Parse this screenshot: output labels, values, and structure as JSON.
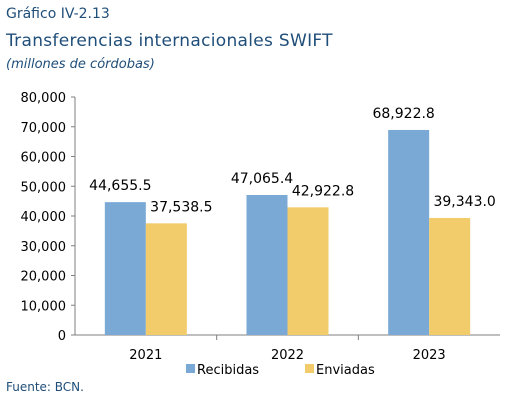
{
  "header": {
    "kicker": "Gráfico IV-2.13",
    "title": "Transferencias internacionales SWIFT",
    "subtitle": "(millones de córdobas)"
  },
  "footer": {
    "source": "Fuente: BCN."
  },
  "colors": {
    "recibidas": "#7aa9d6",
    "enviadas": "#f2cc6a",
    "axis": "#7f7f7f"
  },
  "chart_data": {
    "type": "bar",
    "categories": [
      "2021",
      "2022",
      "2023"
    ],
    "series": [
      {
        "name": "Recibidas",
        "values": [
          44655.5,
          47065.4,
          68922.8
        ],
        "labels": [
          "44,655.5",
          "47,065.4",
          "68,922.8"
        ]
      },
      {
        "name": "Enviadas",
        "values": [
          37538.5,
          42922.8,
          39343.0
        ],
        "labels": [
          "37,538.5",
          "42,922.8",
          "39,343.0"
        ]
      }
    ],
    "ylim": [
      0,
      80000
    ],
    "yticks": [
      0,
      10000,
      20000,
      30000,
      40000,
      50000,
      60000,
      70000,
      80000
    ],
    "ytick_labels": [
      "0",
      "10,000",
      "20,000",
      "30,000",
      "40,000",
      "50,000",
      "60,000",
      "70,000",
      "80,000"
    ],
    "grid": false,
    "legend": "bottom"
  }
}
